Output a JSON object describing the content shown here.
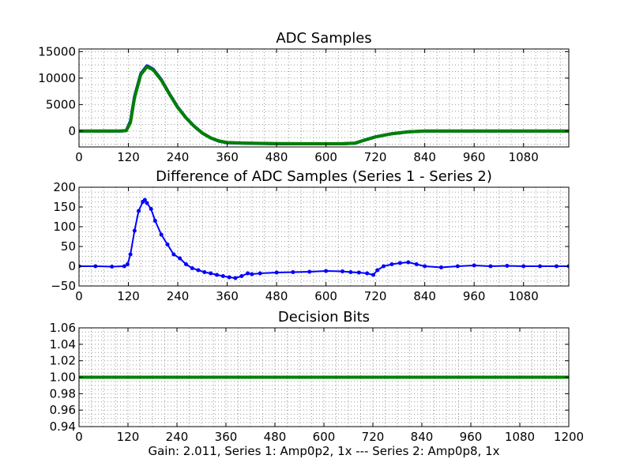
{
  "caption": "Gain: 2.011, Series 1: Amp0p2, 1x --- Series 2: Amp0p8, 1x",
  "colors": {
    "series1": "#0000ff",
    "series2": "#008000",
    "grid": "#9a9a9a",
    "axes": "#000000"
  },
  "chart_data": [
    {
      "type": "line",
      "title": "ADC Samples",
      "xlabel": "",
      "ylabel": "",
      "xlim": [
        0,
        1190
      ],
      "ylim": [
        -3000,
        15500
      ],
      "xticks": [
        0,
        120,
        240,
        360,
        480,
        600,
        720,
        840,
        960,
        1080
      ],
      "yticks": [
        0,
        5000,
        10000,
        15000
      ],
      "grid": true,
      "series": [
        {
          "color": "#0000ff",
          "x": [
            0,
            100,
            115,
            125,
            135,
            150,
            165,
            180,
            200,
            220,
            240,
            260,
            280,
            300,
            320,
            340,
            360,
            400,
            480,
            560,
            640,
            670,
            690,
            720,
            760,
            800,
            840,
            900,
            1000,
            1190
          ],
          "y": [
            0,
            0,
            100,
            1800,
            6500,
            10800,
            12300,
            11700,
            9700,
            7000,
            4500,
            2500,
            900,
            -400,
            -1300,
            -1900,
            -2200,
            -2300,
            -2400,
            -2400,
            -2400,
            -2300,
            -1800,
            -1100,
            -500,
            -150,
            0,
            0,
            0,
            0
          ]
        },
        {
          "color": "#008000",
          "x": [
            0,
            100,
            115,
            125,
            135,
            150,
            165,
            180,
            200,
            220,
            240,
            260,
            280,
            300,
            320,
            340,
            360,
            400,
            480,
            560,
            640,
            670,
            690,
            720,
            760,
            800,
            840,
            900,
            1000,
            1190
          ],
          "y": [
            0,
            0,
            80,
            1600,
            6300,
            10650,
            12150,
            11570,
            9600,
            6930,
            4450,
            2470,
            880,
            -390,
            -1280,
            -1870,
            -2170,
            -2270,
            -2380,
            -2385,
            -2390,
            -2300,
            -1790,
            -1100,
            -505,
            -155,
            0,
            0,
            0,
            0
          ]
        }
      ]
    },
    {
      "type": "line",
      "title": "Difference of ADC Samples (Series 1 - Series 2)",
      "xlabel": "",
      "ylabel": "",
      "xlim": [
        0,
        1190
      ],
      "ylim": [
        -50,
        200
      ],
      "xticks": [
        0,
        120,
        240,
        360,
        480,
        600,
        720,
        840,
        960,
        1080
      ],
      "yticks": [
        -50,
        0,
        50,
        100,
        150,
        200
      ],
      "grid": true,
      "series": [
        {
          "color": "#0000ff",
          "x": [
            0,
            40,
            80,
            110,
            118,
            125,
            135,
            145,
            155,
            160,
            165,
            175,
            185,
            200,
            215,
            230,
            245,
            260,
            275,
            290,
            305,
            320,
            335,
            350,
            365,
            380,
            395,
            410,
            420,
            440,
            480,
            520,
            560,
            600,
            640,
            660,
            680,
            700,
            715,
            725,
            740,
            760,
            780,
            800,
            820,
            840,
            880,
            920,
            960,
            1000,
            1040,
            1080,
            1120,
            1160,
            1190
          ],
          "y": [
            0,
            0,
            -1,
            0,
            5,
            30,
            90,
            140,
            163,
            168,
            160,
            145,
            115,
            80,
            55,
            30,
            20,
            5,
            -5,
            -10,
            -15,
            -18,
            -22,
            -25,
            -28,
            -30,
            -25,
            -18,
            -20,
            -18,
            -16,
            -15,
            -14,
            -12,
            -13,
            -15,
            -16,
            -18,
            -22,
            -10,
            0,
            5,
            8,
            10,
            5,
            0,
            -3,
            0,
            2,
            0,
            1,
            0,
            0,
            0,
            0
          ]
        }
      ]
    },
    {
      "type": "line",
      "title": "Decision Bits",
      "xlabel": "Gain: 2.011, Series 1: Amp0p2, 1x --- Series 2: Amp0p8, 1x",
      "ylabel": "",
      "xlim": [
        0,
        1200
      ],
      "ylim": [
        0.94,
        1.06
      ],
      "xticks": [
        0,
        120,
        240,
        360,
        480,
        600,
        720,
        840,
        960,
        1080,
        1200
      ],
      "yticks": [
        "0.94",
        "0.96",
        "0.98",
        "1.00",
        "1.02",
        "1.04",
        "1.06"
      ],
      "grid": true,
      "series": [
        {
          "color": "#008000",
          "x": [
            0,
            1200
          ],
          "y": [
            1.0,
            1.0
          ]
        }
      ]
    }
  ]
}
